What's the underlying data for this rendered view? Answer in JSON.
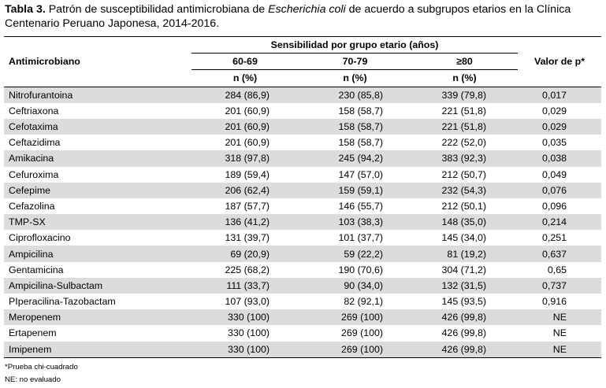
{
  "caption": {
    "label": "Tabla 3.",
    "text_before": " Patrón de susceptibilidad antimicrobiana de ",
    "organism": "Escherichia coli",
    "text_after": " de acuerdo a subgrupos etarios en la Clínica Centenario Peruano Japonesa, 2014-2016."
  },
  "header": {
    "group_title": "Sensibilidad por grupo etario (años)",
    "first_col": "Antimicrobiano",
    "last_col": "Valor de p*",
    "age_groups": [
      "60-69",
      "70-79",
      "≥80"
    ],
    "subheader": "n (%)"
  },
  "rows": [
    {
      "name": "Nitrofurantoina",
      "g1": "284 (86,9)",
      "g2": "230 (85,8)",
      "g3": "339 (79,8)",
      "p": "0,017"
    },
    {
      "name": "Ceftriaxona",
      "g1": "201 (60,9)",
      "g2": "158 (58,7)",
      "g3": "221 (51,8)",
      "p": "0,029"
    },
    {
      "name": "Cefotaxima",
      "g1": "201 (60,9)",
      "g2": "158 (58,7)",
      "g3": "221 (51,8)",
      "p": "0,029"
    },
    {
      "name": "Ceftazidima",
      "g1": "201 (60,9)",
      "g2": "158 (58,7)",
      "g3": "222 (52,0)",
      "p": "0,035"
    },
    {
      "name": "Amikacina",
      "g1": "318 (97,8)",
      "g2": "245 (94,2)",
      "g3": "383 (92,3)",
      "p": "0,038"
    },
    {
      "name": "Cefuroxima",
      "g1": "189 (59,4)",
      "g2": "147 (57,0)",
      "g3": "212 (50,7)",
      "p": "0,049"
    },
    {
      "name": "Cefepime",
      "g1": "206 (62,4)",
      "g2": "159 (59,1)",
      "g3": "232 (54,3)",
      "p": "0,076"
    },
    {
      "name": "Cefazolina",
      "g1": "187 (57,7)",
      "g2": "146 (55,7)",
      "g3": "212 (50,1)",
      "p": "0,096"
    },
    {
      "name": "TMP-SX",
      "g1": "136 (41,2)",
      "g2": "103 (38,3)",
      "g3": "148 (35,0)",
      "p": "0,214"
    },
    {
      "name": "Ciprofloxacino",
      "g1": "131 (39,7)",
      "g2": "101 (37,7)",
      "g3": "145 (34,0)",
      "p": "0,251"
    },
    {
      "name": "Ampicilina",
      "g1": "69 (20,9)",
      "g2": "59 (22,2)",
      "g3": "81 (19,2)",
      "p": "0,637"
    },
    {
      "name": "Gentamicina",
      "g1": "225 (68,2)",
      "g2": "190 (70,6)",
      "g3": "304 (71,2)",
      "p": "0,65"
    },
    {
      "name": "Ampicilina-Sulbactam",
      "g1": "111 (33,7)",
      "g2": "90 (34,0)",
      "g3": "132 (31,5)",
      "p": "0,737"
    },
    {
      "name": "PIperacilina-Tazobactam",
      "g1": "107 (93,0)",
      "g2": "82 (92,1)",
      "g3": "145 (93,5)",
      "p": "0,916"
    },
    {
      "name": "Meropenem",
      "g1": "330 (100)",
      "g2": "269 (100)",
      "g3": "426 (99,8)",
      "p": "NE"
    },
    {
      "name": "Ertapenem",
      "g1": "330 (100)",
      "g2": "269 (100)",
      "g3": "426 (99,8)",
      "p": "NE"
    },
    {
      "name": "Imipenem",
      "g1": "330 (100)",
      "g2": "269 (100)",
      "g3": "426 (99,8)",
      "p": "NE"
    }
  ],
  "footnotes": [
    "*Prueba chi-cuadrado",
    "NE: no evaluado"
  ],
  "colors": {
    "shade": "#dcdcdc",
    "rule": "#000000"
  }
}
